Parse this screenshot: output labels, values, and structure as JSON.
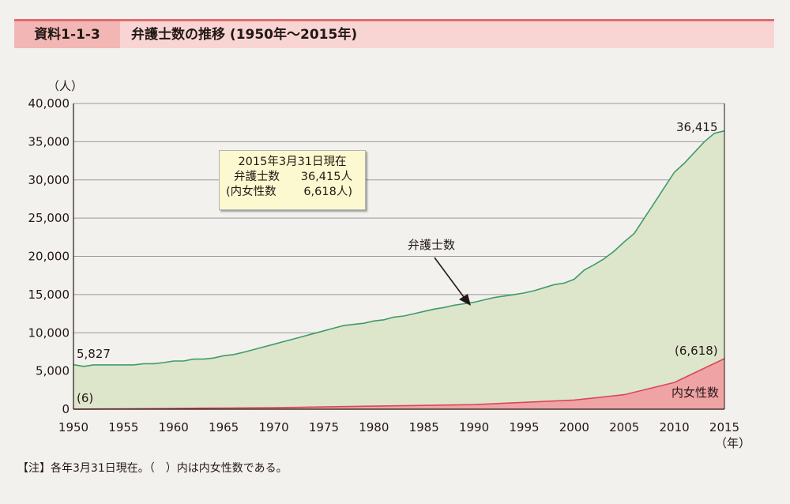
{
  "header": {
    "label": "資料1-1-3",
    "title": "弁護士数の推移 (1950年〜2015年)"
  },
  "note": "【注】各年3月31日現在。（　）内は内女性数である。",
  "infobox": {
    "line1": "2015年3月31日現在",
    "line2_key": "弁護士数",
    "line2_val": "36,415人",
    "line3_key": "(内女性数",
    "line3_val": "6,618人)"
  },
  "colors": {
    "total_fill": "#dde6cb",
    "total_line": "#3f9b6a",
    "women_fill": "#f0a3a4",
    "women_line": "#d9475e",
    "header_bar": "#e06b6f",
    "header_label_bg": "#f2b7b4",
    "header_bg": "#f8d5d3"
  },
  "chart_data": {
    "type": "area",
    "ylabel": "（人）",
    "xlabel": "（年）",
    "ylim": [
      0,
      40000
    ],
    "xlim": [
      1950,
      2015
    ],
    "grid": true,
    "yticks": [
      "0",
      "5,000",
      "10,000",
      "15,000",
      "20,000",
      "25,000",
      "30,000",
      "35,000",
      "40,000"
    ],
    "xticks": [
      "1950",
      "1955",
      "1960",
      "1965",
      "1970",
      "1975",
      "1980",
      "1985",
      "1990",
      "1995",
      "2000",
      "2005",
      "2010",
      "2015"
    ],
    "series": [
      {
        "name": "弁護士数",
        "x": [
          1950,
          1951,
          1952,
          1953,
          1954,
          1955,
          1956,
          1957,
          1958,
          1959,
          1960,
          1961,
          1962,
          1963,
          1964,
          1965,
          1966,
          1967,
          1968,
          1969,
          1970,
          1971,
          1972,
          1973,
          1974,
          1975,
          1976,
          1977,
          1978,
          1979,
          1980,
          1981,
          1982,
          1983,
          1984,
          1985,
          1986,
          1987,
          1988,
          1989,
          1990,
          1991,
          1992,
          1993,
          1994,
          1995,
          1996,
          1997,
          1998,
          1999,
          2000,
          2001,
          2002,
          2003,
          2004,
          2005,
          2006,
          2007,
          2008,
          2009,
          2010,
          2011,
          2012,
          2013,
          2014,
          2015
        ],
        "values": [
          5827,
          5600,
          5800,
          5800,
          5800,
          5800,
          5800,
          5950,
          5950,
          6100,
          6300,
          6300,
          6550,
          6550,
          6700,
          7000,
          7150,
          7450,
          7800,
          8150,
          8500,
          8850,
          9200,
          9550,
          9900,
          10250,
          10600,
          10950,
          11100,
          11250,
          11550,
          11700,
          12050,
          12200,
          12500,
          12800,
          13100,
          13300,
          13600,
          13800,
          14000,
          14300,
          14600,
          14800,
          15000,
          15200,
          15500,
          15900,
          16300,
          16500,
          17000,
          18200,
          18900,
          19700,
          20700,
          21900,
          23000,
          25000,
          27000,
          29000,
          31000,
          32200,
          33600,
          35000,
          36100,
          36415
        ]
      },
      {
        "name": "内女性数",
        "x": [
          1950,
          1955,
          1960,
          1965,
          1970,
          1975,
          1980,
          1985,
          1990,
          1995,
          2000,
          2005,
          2010,
          2015
        ],
        "values": [
          6,
          50,
          100,
          150,
          200,
          300,
          400,
          500,
          600,
          900,
          1200,
          1900,
          3500,
          6618
        ]
      }
    ],
    "annotations": [
      {
        "text": "5,827"
      },
      {
        "text": "(6)"
      },
      {
        "text": "36,415"
      },
      {
        "text": "(6,618)"
      },
      {
        "text": "弁護士数"
      },
      {
        "text": "内女性数"
      }
    ]
  }
}
